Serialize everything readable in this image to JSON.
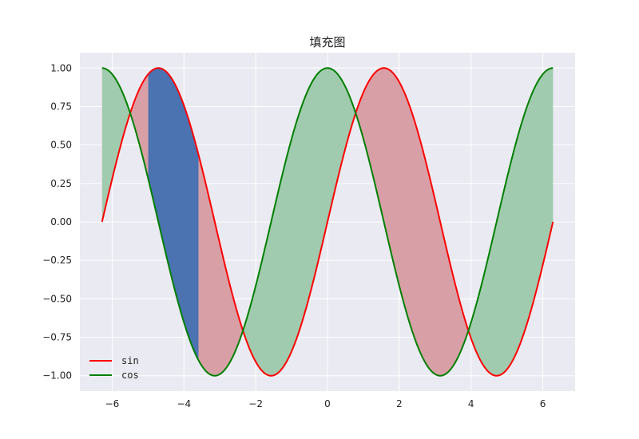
{
  "chart_data": {
    "type": "line",
    "title": "填充图",
    "xlabel": "",
    "ylabel": "",
    "xlim": [
      -6.9,
      6.9
    ],
    "ylim": [
      -1.1,
      1.1
    ],
    "x_ticks": [
      -6,
      -4,
      -2,
      0,
      2,
      4,
      6
    ],
    "x_tick_labels": [
      "−6",
      "−4",
      "−2",
      "0",
      "2",
      "4",
      "6"
    ],
    "y_ticks": [
      1.0,
      0.75,
      0.5,
      0.25,
      0.0,
      -0.25,
      -0.5,
      -0.75,
      -1.0
    ],
    "y_tick_labels": [
      "1.00",
      "0.75",
      "0.50",
      "0.25",
      "0.00",
      "−0.25",
      "−0.50",
      "−0.75",
      "−1.00"
    ],
    "x_range": [
      -6.283,
      6.283
    ],
    "series": [
      {
        "name": "sin",
        "function": "sin",
        "color": "#ff0000"
      },
      {
        "name": "cos",
        "function": "cos",
        "color": "#008000"
      }
    ],
    "fills": [
      {
        "between": [
          "sin",
          "cos"
        ],
        "where": "sin > cos",
        "color": "#d8a0a6"
      },
      {
        "between": [
          "sin",
          "cos"
        ],
        "where": "cos > sin",
        "color": "#a1cbae"
      },
      {
        "between": [
          "sin",
          "cos"
        ],
        "x_range": [
          -5.0,
          -3.6
        ],
        "color": "#4b72b1"
      }
    ],
    "grid": true,
    "background": "#eaeaf2",
    "legend_position": "lower-left"
  }
}
